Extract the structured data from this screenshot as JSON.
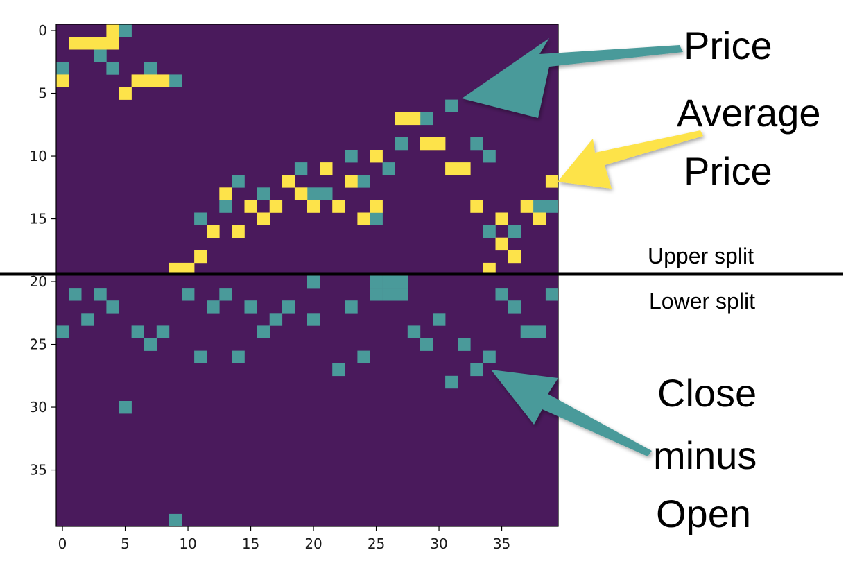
{
  "colors": {
    "background_cell": "#4a1a5c",
    "price_cell": "#4a9a9a",
    "average_cell": "#fde34a",
    "price_arrow": "#4a9a9a",
    "average_arrow": "#fde34a"
  },
  "annotations": {
    "price": "Price",
    "average_line1": "Average",
    "average_line2": "Price",
    "upper_split": "Upper split",
    "lower_split": "Lower split",
    "close_line1": "Close",
    "close_line2": "minus",
    "close_line3": "Open"
  },
  "chart_data": {
    "type": "heatmap",
    "grid_size": [
      40,
      40
    ],
    "xlim": [
      -0.5,
      39.5
    ],
    "ylim": [
      39.5,
      -0.5
    ],
    "x_ticks": [
      0,
      5,
      10,
      15,
      20,
      25,
      30,
      35
    ],
    "y_ticks": [
      0,
      5,
      10,
      15,
      20,
      25,
      30,
      35
    ],
    "split_row": 19.5,
    "cells": {
      "price": [
        [
          5,
          0
        ],
        [
          3,
          2
        ],
        [
          0,
          3
        ],
        [
          4,
          3
        ],
        [
          7,
          3
        ],
        [
          0,
          4
        ],
        [
          9,
          4
        ],
        [
          31,
          6
        ],
        [
          29,
          7
        ],
        [
          27,
          9
        ],
        [
          33,
          9
        ],
        [
          23,
          10
        ],
        [
          34,
          10
        ],
        [
          26,
          11
        ],
        [
          19,
          11
        ],
        [
          14,
          12
        ],
        [
          24,
          12
        ],
        [
          16,
          13
        ],
        [
          20,
          13
        ],
        [
          21,
          13
        ],
        [
          13,
          14
        ],
        [
          38,
          14
        ],
        [
          39,
          14
        ],
        [
          11,
          15
        ],
        [
          25,
          15
        ],
        [
          34,
          16
        ],
        [
          36,
          16
        ],
        [
          1,
          21
        ],
        [
          3,
          21
        ],
        [
          10,
          21
        ],
        [
          13,
          21
        ],
        [
          20,
          20
        ],
        [
          35,
          21
        ],
        [
          39,
          21
        ],
        [
          4,
          22
        ],
        [
          12,
          22
        ],
        [
          15,
          22
        ],
        [
          18,
          22
        ],
        [
          23,
          22
        ],
        [
          36,
          22
        ],
        [
          2,
          23
        ],
        [
          17,
          23
        ],
        [
          20,
          23
        ],
        [
          30,
          23
        ],
        [
          0,
          24
        ],
        [
          6,
          24
        ],
        [
          8,
          24
        ],
        [
          16,
          24
        ],
        [
          28,
          24
        ],
        [
          37,
          24
        ],
        [
          38,
          24
        ],
        [
          7,
          25
        ],
        [
          29,
          25
        ],
        [
          32,
          25
        ],
        [
          11,
          26
        ],
        [
          14,
          26
        ],
        [
          24,
          26
        ],
        [
          34,
          26
        ],
        [
          22,
          27
        ],
        [
          33,
          27
        ],
        [
          31,
          28
        ],
        [
          5,
          30
        ],
        [
          9,
          39
        ],
        [
          25,
          21
        ],
        [
          26,
          21
        ],
        [
          27,
          21
        ],
        [
          25,
          20
        ],
        [
          26,
          20
        ],
        [
          27,
          20
        ]
      ],
      "average": [
        [
          1,
          1
        ],
        [
          2,
          1
        ],
        [
          3,
          1
        ],
        [
          4,
          0
        ],
        [
          4,
          1
        ],
        [
          0,
          4
        ],
        [
          6,
          4
        ],
        [
          7,
          4
        ],
        [
          8,
          4
        ],
        [
          5,
          5
        ],
        [
          27,
          7
        ],
        [
          28,
          7
        ],
        [
          29,
          9
        ],
        [
          30,
          9
        ],
        [
          25,
          10
        ],
        [
          31,
          11
        ],
        [
          32,
          11
        ],
        [
          21,
          11
        ],
        [
          18,
          12
        ],
        [
          23,
          12
        ],
        [
          39,
          12
        ],
        [
          13,
          13
        ],
        [
          19,
          13
        ],
        [
          20,
          14
        ],
        [
          15,
          14
        ],
        [
          17,
          14
        ],
        [
          22,
          14
        ],
        [
          25,
          14
        ],
        [
          33,
          14
        ],
        [
          37,
          14
        ],
        [
          16,
          15
        ],
        [
          24,
          15
        ],
        [
          35,
          15
        ],
        [
          38,
          15
        ],
        [
          12,
          16
        ],
        [
          14,
          16
        ],
        [
          35,
          17
        ],
        [
          11,
          18
        ],
        [
          36,
          18
        ],
        [
          9,
          19
        ],
        [
          10,
          19
        ],
        [
          34,
          19
        ]
      ]
    }
  }
}
